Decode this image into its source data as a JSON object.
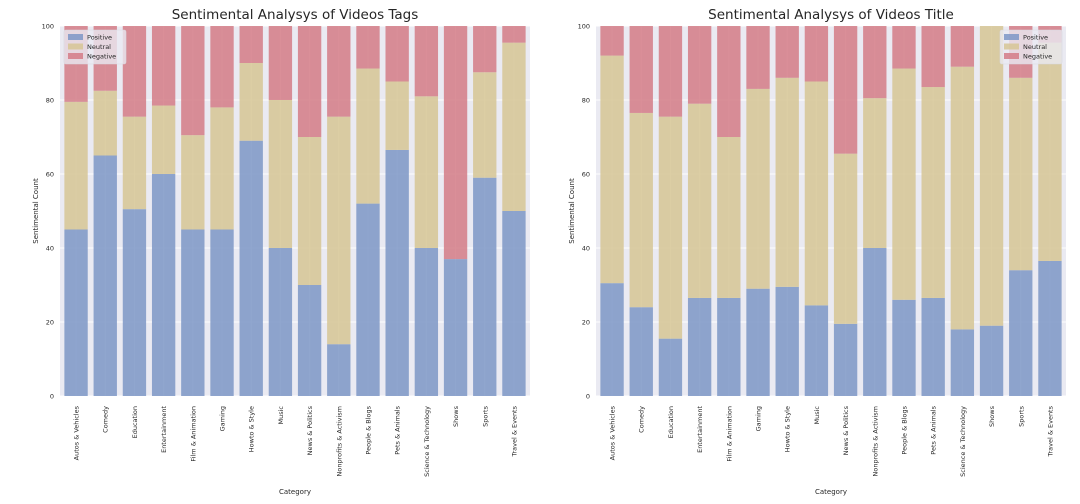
{
  "chart_data": [
    {
      "type": "bar",
      "stacked": true,
      "title": "Sentimental Analysys of Videos Tags",
      "xlabel": "Category",
      "ylabel": "Sentimental Count",
      "ylim": [
        0,
        100
      ],
      "yticks": [
        0,
        20,
        40,
        60,
        80,
        100
      ],
      "grid": true,
      "legend": "top-left",
      "categories": [
        "Autos & Vehicles",
        "Comedy",
        "Education",
        "Entertainment",
        "Film & Animation",
        "Gaming",
        "Howto & Style",
        "Music",
        "News & Politics",
        "Nonprofits & Activism",
        "People & Blogs",
        "Pets & Animals",
        "Science & Technology",
        "Shows",
        "Sports",
        "Travel & Events"
      ],
      "series": [
        {
          "name": "Positive",
          "color": "#7d96c6",
          "values": [
            45,
            65,
            50.5,
            60,
            45,
            45,
            69,
            40,
            30,
            14,
            52,
            66.5,
            40,
            37,
            59,
            50
          ]
        },
        {
          "name": "Neutral",
          "color": "#d6c694",
          "values": [
            34.5,
            17.5,
            25,
            18.5,
            25.5,
            33,
            21,
            40,
            40,
            61.5,
            36.5,
            18.5,
            41,
            0,
            28.5,
            45.5
          ]
        },
        {
          "name": "Negative",
          "color": "#d37b86",
          "values": [
            20.5,
            17.5,
            24.5,
            21.5,
            29.5,
            22,
            10,
            20,
            30,
            24.5,
            11.5,
            15,
            19,
            63,
            12.5,
            4.5
          ]
        }
      ]
    },
    {
      "type": "bar",
      "stacked": true,
      "title": "Sentimental Analysys of Videos Title",
      "xlabel": "Category",
      "ylabel": "Sentimental Count",
      "ylim": [
        0,
        100
      ],
      "yticks": [
        0,
        20,
        40,
        60,
        80,
        100
      ],
      "grid": true,
      "legend": "top-right",
      "categories": [
        "Autos & Vehicles",
        "Comedy",
        "Education",
        "Entertainment",
        "Film & Animation",
        "Gaming",
        "Howto & Style",
        "Music",
        "News & Politics",
        "Nonprofits & Activism",
        "People & Blogs",
        "Pets & Animals",
        "Science & Technology",
        "Shows",
        "Sports",
        "Travel & Events"
      ],
      "series": [
        {
          "name": "Positive",
          "color": "#7d96c6",
          "values": [
            30.5,
            24,
            15.5,
            26.5,
            26.5,
            29,
            29.5,
            24.5,
            19.5,
            40,
            26,
            26.5,
            18,
            19,
            34,
            36.5
          ]
        },
        {
          "name": "Neutral",
          "color": "#d6c694",
          "values": [
            61.5,
            52.5,
            60,
            52.5,
            43.5,
            54,
            56.5,
            60.5,
            46,
            40.5,
            62.5,
            57,
            71,
            81,
            52,
            59
          ]
        },
        {
          "name": "Negative",
          "color": "#d37b86",
          "values": [
            8,
            23.5,
            24.5,
            21,
            30,
            17,
            14,
            15,
            34.5,
            19.5,
            11.5,
            16.5,
            11,
            0,
            14,
            4.5
          ]
        }
      ]
    }
  ]
}
